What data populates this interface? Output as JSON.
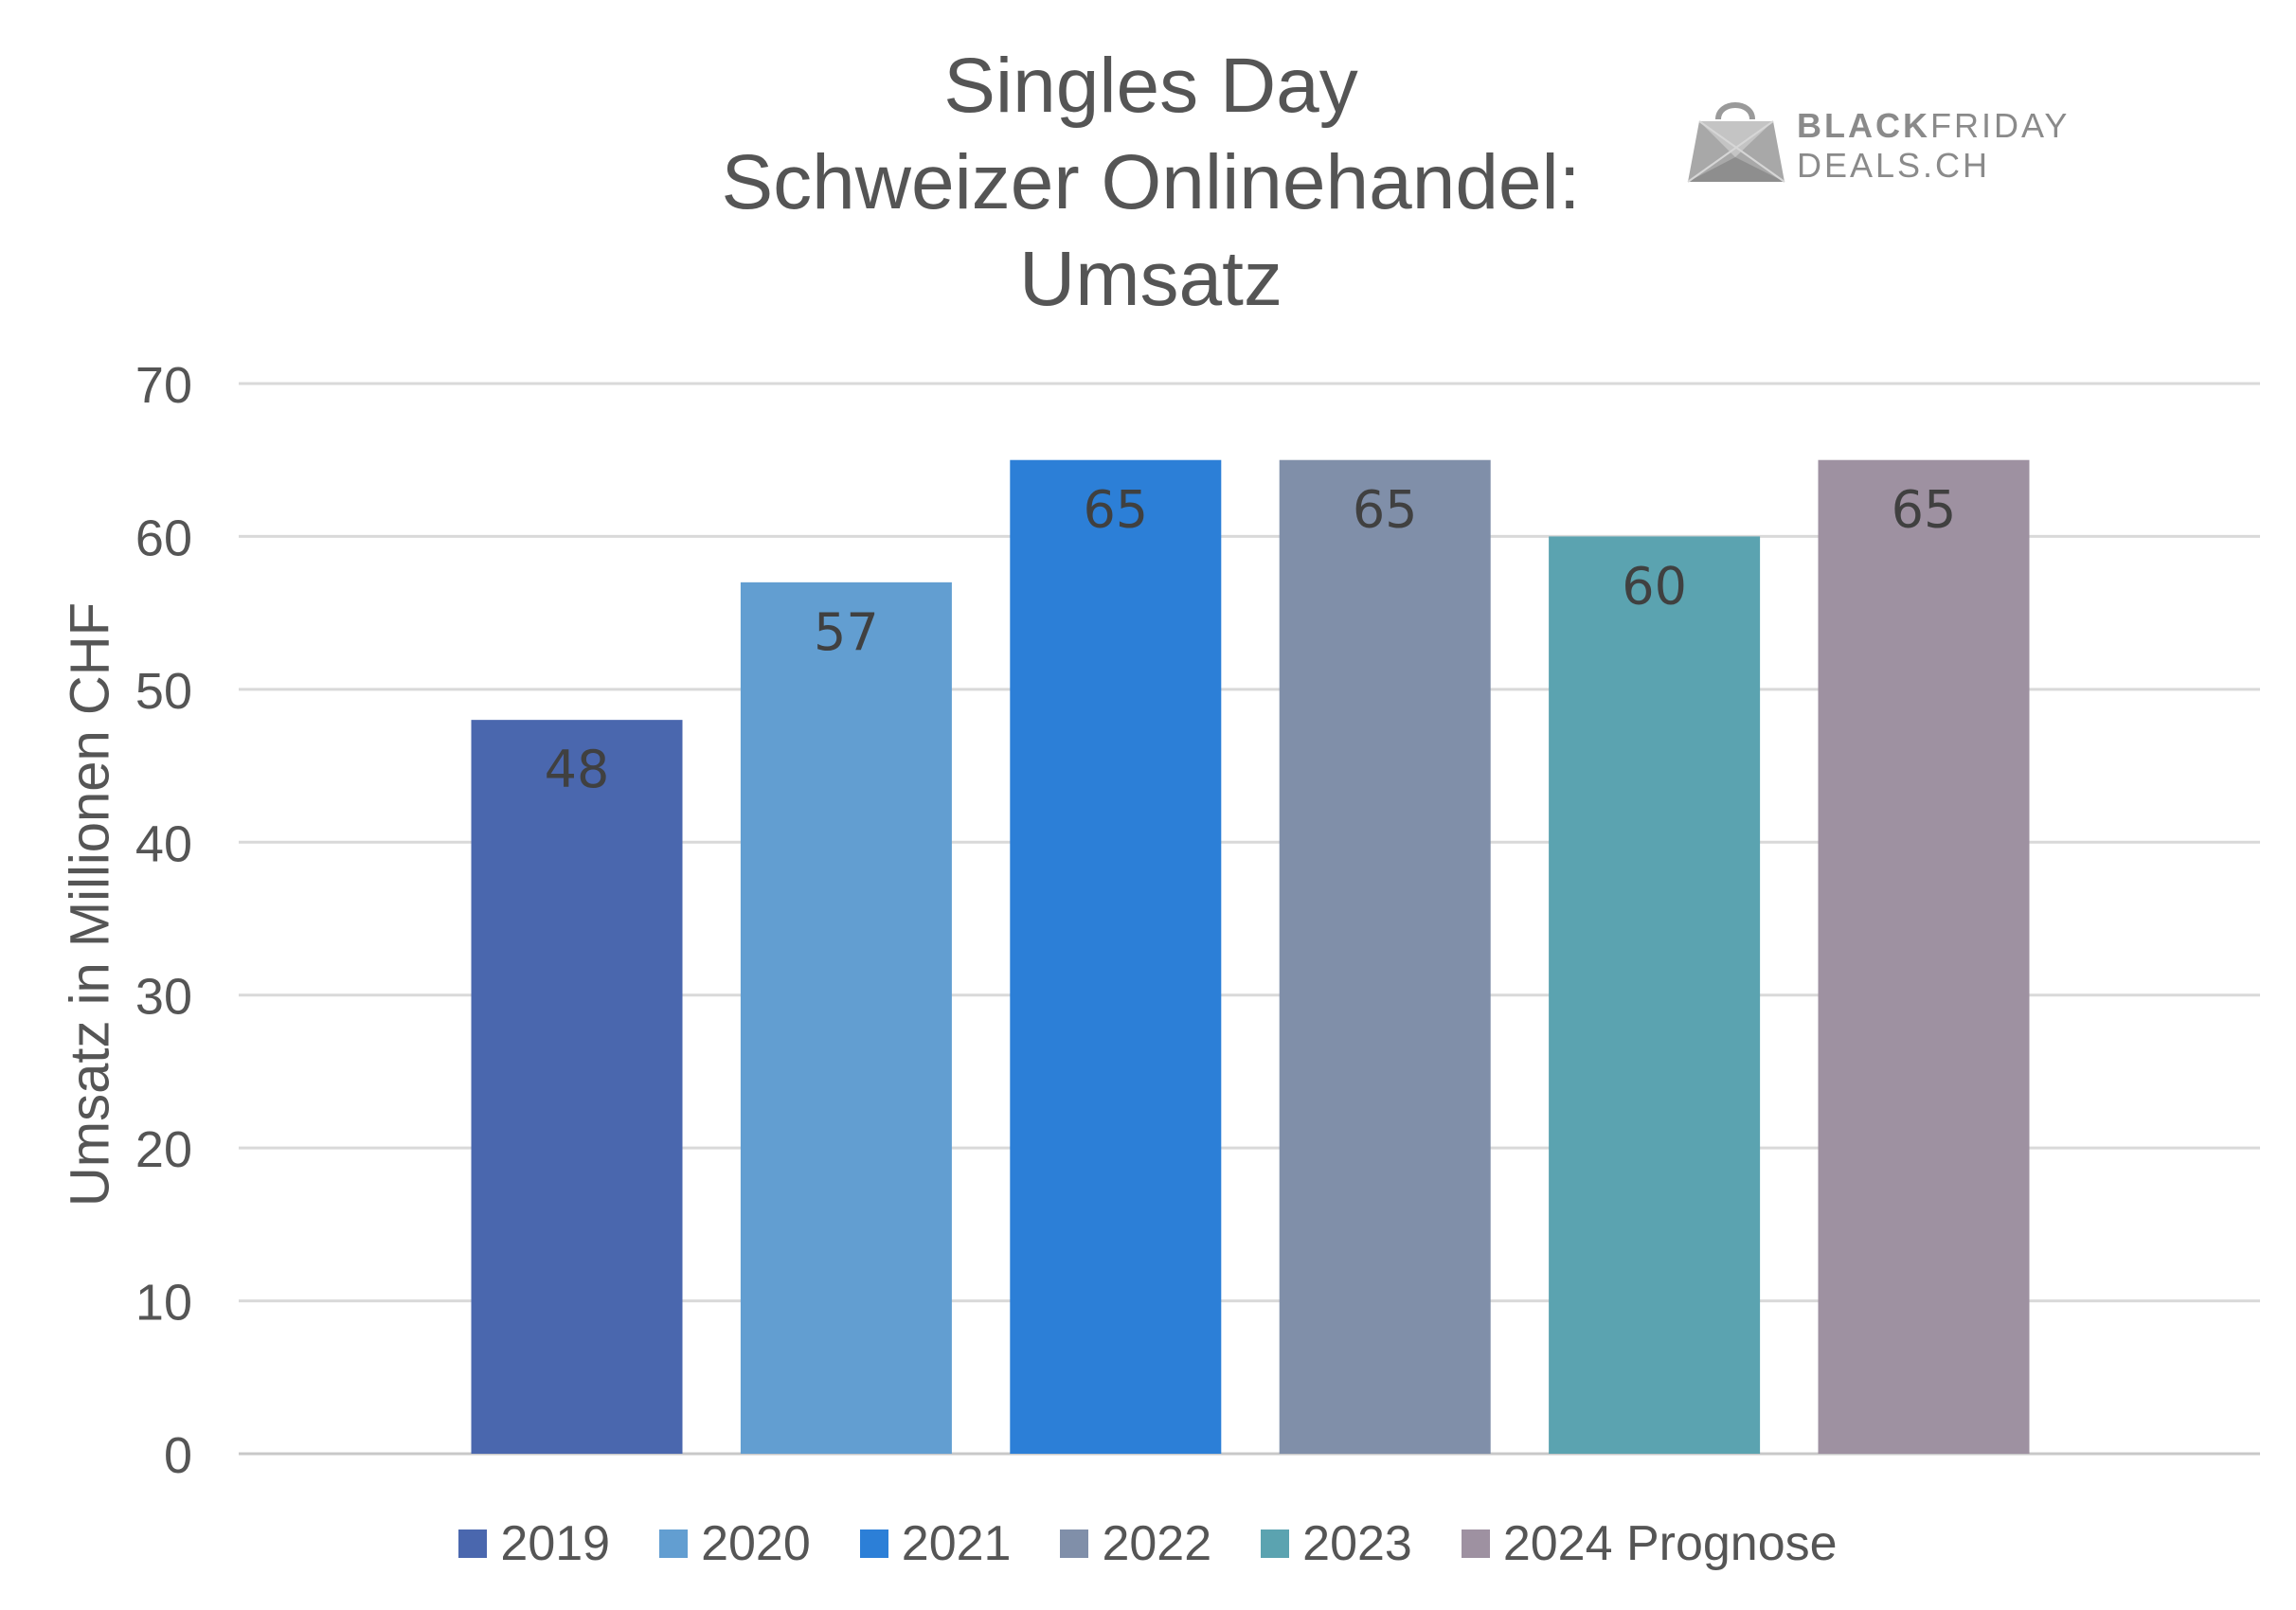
{
  "title_lines": [
    "Singles Day",
    "Schweizer Onlinehandel:",
    "Umsatz"
  ],
  "logo": {
    "line1_bold": "BLACK",
    "line1_rest": "FRIDAY",
    "line2": "DEALS.CH",
    "icon": "shopping-bag-icon",
    "color": "#8a8a8a"
  },
  "chart_data": {
    "type": "bar",
    "title": "Singles Day Schweizer Onlinehandel: Umsatz",
    "xlabel": "",
    "ylabel": "Umsatz in Millionen CHF",
    "ylim": [
      0,
      70
    ],
    "yticks": [
      0,
      10,
      20,
      30,
      40,
      50,
      60,
      70
    ],
    "grid": true,
    "legend_position": "bottom",
    "series": [
      {
        "name": "2019",
        "value": 48,
        "color": "#4a67ae"
      },
      {
        "name": "2020",
        "value": 57,
        "color": "#629ed1"
      },
      {
        "name": "2021",
        "value": 65,
        "color": "#2c7fd7"
      },
      {
        "name": "2022",
        "value": 65,
        "color": "#808fa9"
      },
      {
        "name": "2023",
        "value": 60,
        "color": "#5ba3b0"
      },
      {
        "name": "2024 Prognose",
        "value": 65,
        "color": "#9e91a1"
      }
    ]
  }
}
